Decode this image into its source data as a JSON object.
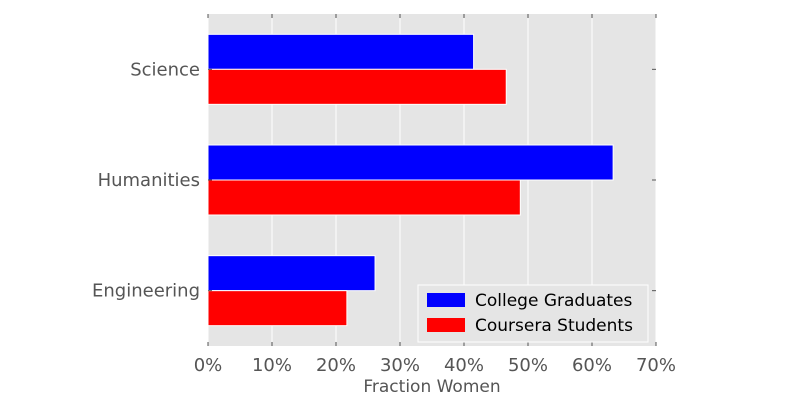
{
  "chart_data": {
    "type": "bar",
    "orientation": "horizontal",
    "categories": [
      "Science",
      "Humanities",
      "Engineering"
    ],
    "series": [
      {
        "name": "College Graduates",
        "color": "#0000ff",
        "values": [
          0.415,
          0.633,
          0.261
        ]
      },
      {
        "name": "Coursera Students",
        "color": "#ff0000",
        "values": [
          0.466,
          0.488,
          0.217
        ]
      }
    ],
    "xlabel": "Fraction Women",
    "ylabel": "",
    "title": "",
    "xlim": [
      0,
      0.7
    ],
    "x_ticks": [
      0,
      0.1,
      0.2,
      0.3,
      0.4,
      0.5,
      0.6,
      0.7
    ],
    "x_tick_labels": [
      "0%",
      "10%",
      "20%",
      "30%",
      "40%",
      "50%",
      "60%",
      "70%"
    ],
    "grid": true,
    "legend_position": "bottom-right",
    "background_color": "#e5e5e5",
    "grid_color": "#ffffff"
  }
}
